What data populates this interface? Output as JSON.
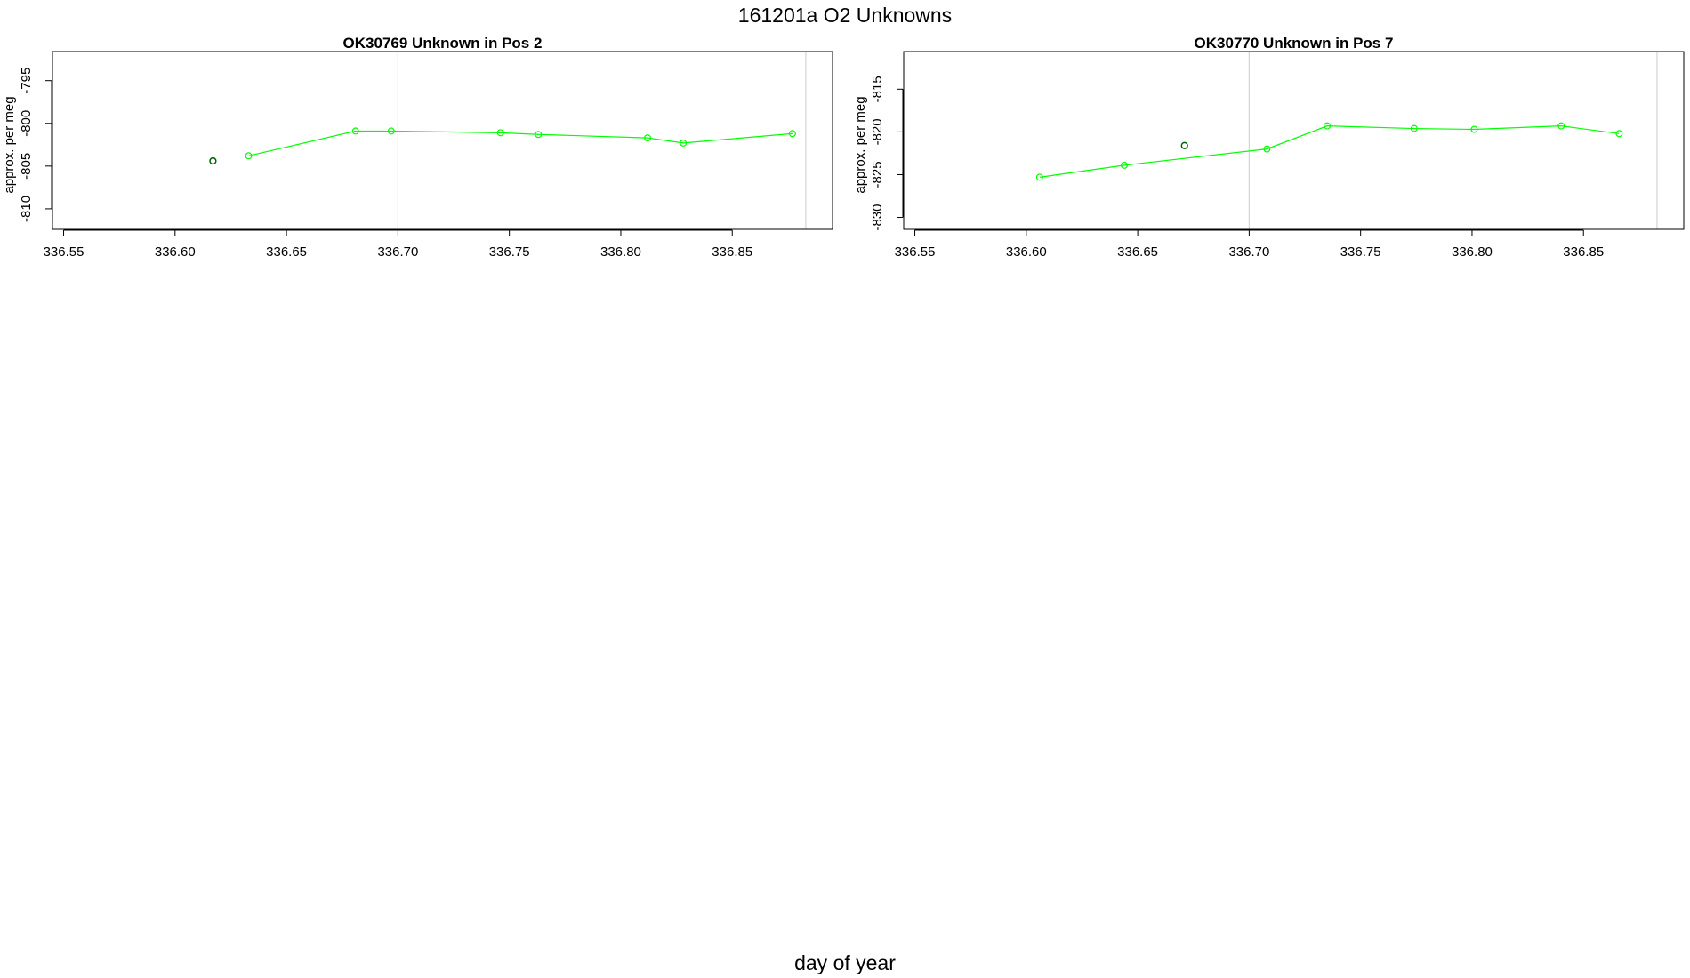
{
  "main_title": "161201a  O2 Unknowns",
  "xlabel": "day of year",
  "colors": {
    "series": "#00ff00",
    "outlier": "#006400",
    "vline": "#d3d3d3",
    "frame": "#000000"
  },
  "chart_data": [
    {
      "type": "line",
      "title": "OK30769    Unknown in Pos 2",
      "ylabel": "approx. per meg",
      "xlim": [
        336.545,
        336.895
      ],
      "ylim": [
        -812.4,
        -791.6
      ],
      "xticks": [
        336.55,
        336.6,
        336.65,
        336.7,
        336.75,
        336.8,
        336.85
      ],
      "xtick_labels": [
        "336.55",
        "336.60",
        "336.65",
        "336.70",
        "336.75",
        "336.80",
        "336.85"
      ],
      "yticks": [
        -810,
        -805,
        -800,
        -795
      ],
      "ytick_labels": [
        "-810",
        "-805",
        "-800",
        "-795"
      ],
      "vlines": [
        336.7,
        336.883
      ],
      "series": [
        {
          "x": [
            336.633,
            336.681,
            336.697,
            336.746,
            336.763,
            336.812,
            336.828,
            336.877
          ],
          "y": [
            -803.8,
            -800.9,
            -800.9,
            -801.1,
            -801.3,
            -801.7,
            -802.3,
            -801.2
          ]
        }
      ],
      "outliers": [
        {
          "x": 336.617,
          "y": -804.4
        }
      ]
    },
    {
      "type": "line",
      "title": "OK30770    Unknown in Pos 7",
      "ylabel": "approx. per meg",
      "xlim": [
        336.545,
        336.895
      ],
      "ylim": [
        -831.4,
        -810.6
      ],
      "xticks": [
        336.55,
        336.6,
        336.65,
        336.7,
        336.75,
        336.8,
        336.85
      ],
      "xtick_labels": [
        "336.55",
        "336.60",
        "336.65",
        "336.70",
        "336.75",
        "336.80",
        "336.85"
      ],
      "yticks": [
        -830,
        -825,
        -820,
        -815
      ],
      "ytick_labels": [
        "-830",
        "-825",
        "-820",
        "-815"
      ],
      "vlines": [
        336.7,
        336.883
      ],
      "series": [
        {
          "x": [
            336.606,
            336.644,
            336.708,
            336.735,
            336.774,
            336.801,
            336.84,
            336.866
          ],
          "y": [
            -825.3,
            -823.9,
            -822.0,
            -819.3,
            -819.6,
            -819.7,
            -819.3,
            -820.2
          ]
        }
      ],
      "outliers": [
        {
          "x": 336.671,
          "y": -821.6
        }
      ]
    }
  ]
}
